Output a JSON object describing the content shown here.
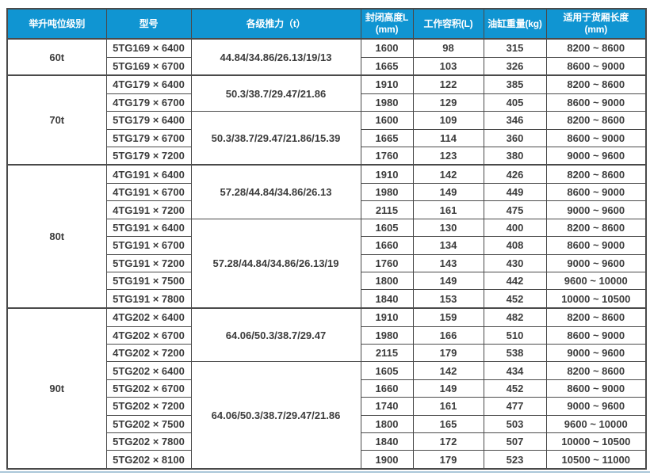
{
  "colors": {
    "header_bg": "#1095d2",
    "header_text": "#ffffff",
    "shaded_row_bg": "#b7dff4",
    "border": "#4a4a4a",
    "text": "#3c3c3c",
    "bottom_divider": "#abc7d9"
  },
  "table": {
    "headers": [
      {
        "label": "举升吨位级别",
        "sub": ""
      },
      {
        "label": "型号",
        "sub": ""
      },
      {
        "label": "各级推力（t）",
        "sub": ""
      },
      {
        "label": "封闭高度L",
        "sub": "(mm)"
      },
      {
        "label": "工作容积(L)",
        "sub": ""
      },
      {
        "label": "油缸重量(kg)",
        "sub": ""
      },
      {
        "label": "适用于货厢长度",
        "sub": "(mm)"
      }
    ],
    "groups": [
      {
        "tonnage": "60t",
        "subgroups": [
          {
            "thrust": "44.84/34.86/26.13/19/13",
            "thrust_shaded": false,
            "rows": [
              {
                "model": "5TG169 × 6400",
                "closed_height": "1600",
                "working_volume": "98",
                "cylinder_weight": "315",
                "cargo_length": "8200 ~ 8600",
                "shaded": false
              },
              {
                "model": "5TG169 × 6700",
                "closed_height": "1665",
                "working_volume": "103",
                "cylinder_weight": "326",
                "cargo_length": "8600 ~ 9000",
                "shaded": true
              }
            ]
          }
        ]
      },
      {
        "tonnage": "70t",
        "subgroups": [
          {
            "thrust": "50.3/38.7/29.47/21.86",
            "thrust_shaded": false,
            "rows": [
              {
                "model": "4TG179 × 6400",
                "closed_height": "1910",
                "working_volume": "122",
                "cylinder_weight": "385",
                "cargo_length": "8200 ~ 8600",
                "shaded": false
              },
              {
                "model": "4TG179 × 6700",
                "closed_height": "1980",
                "working_volume": "129",
                "cylinder_weight": "405",
                "cargo_length": "8600 ~ 9000",
                "shaded": true
              }
            ]
          },
          {
            "thrust": "50.3/38.7/29.47/21.86/15.39",
            "thrust_shaded": false,
            "rows": [
              {
                "model": "5TG179 × 6400",
                "closed_height": "1600",
                "working_volume": "109",
                "cylinder_weight": "346",
                "cargo_length": "8200 ~ 8600",
                "shaded": false
              },
              {
                "model": "5TG179 × 6700",
                "closed_height": "1665",
                "working_volume": "114",
                "cylinder_weight": "360",
                "cargo_length": "8600 ~ 9000",
                "shaded": true
              },
              {
                "model": "5TG179 × 7200",
                "closed_height": "1760",
                "working_volume": "123",
                "cylinder_weight": "380",
                "cargo_length": "9000 ~ 9600",
                "shaded": false
              }
            ]
          }
        ]
      },
      {
        "tonnage": "80t",
        "subgroups": [
          {
            "thrust": "57.28/44.84/34.86/26.13",
            "thrust_shaded": true,
            "rows": [
              {
                "model": "4TG191 × 6400",
                "closed_height": "1910",
                "working_volume": "142",
                "cylinder_weight": "426",
                "cargo_length": "8200 ~ 8600",
                "shaded": true
              },
              {
                "model": "4TG191 × 6700",
                "closed_height": "1980",
                "working_volume": "149",
                "cylinder_weight": "449",
                "cargo_length": "8600 ~ 9000",
                "shaded": false
              },
              {
                "model": "4TG191 × 7200",
                "closed_height": "2115",
                "working_volume": "161",
                "cylinder_weight": "475",
                "cargo_length": "9000 ~ 9600",
                "shaded": true
              }
            ]
          },
          {
            "thrust": "57.28/44.84/34.86/26.13/19",
            "thrust_shaded": false,
            "rows": [
              {
                "model": "5TG191 × 6400",
                "closed_height": "1605",
                "working_volume": "130",
                "cylinder_weight": "400",
                "cargo_length": "8200 ~ 8600",
                "shaded": false
              },
              {
                "model": "5TG191 × 6700",
                "closed_height": "1660",
                "working_volume": "134",
                "cylinder_weight": "408",
                "cargo_length": "8600 ~ 9000",
                "shaded": true
              },
              {
                "model": "5TG191 × 7200",
                "closed_height": "1760",
                "working_volume": "143",
                "cylinder_weight": "430",
                "cargo_length": "9000 ~ 9600",
                "shaded": false
              },
              {
                "model": "5TG191 × 7500",
                "closed_height": "1800",
                "working_volume": "149",
                "cylinder_weight": "442",
                "cargo_length": "9600 ~ 10000",
                "shaded": true
              },
              {
                "model": "5TG191 × 7800",
                "closed_height": "1840",
                "working_volume": "153",
                "cylinder_weight": "452",
                "cargo_length": "10000 ~ 10500",
                "shaded": false
              }
            ]
          }
        ]
      },
      {
        "tonnage": "90t",
        "subgroups": [
          {
            "thrust": "64.06/50.3/38.7/29.47",
            "thrust_shaded": true,
            "rows": [
              {
                "model": "4TG202 × 6400",
                "closed_height": "1910",
                "working_volume": "159",
                "cylinder_weight": "482",
                "cargo_length": "8200 ~ 8600",
                "shaded": true
              },
              {
                "model": "4TG202 × 6700",
                "closed_height": "1980",
                "working_volume": "166",
                "cylinder_weight": "510",
                "cargo_length": "8600 ~ 9000",
                "shaded": false
              },
              {
                "model": "4TG202 × 7200",
                "closed_height": "2115",
                "working_volume": "179",
                "cylinder_weight": "538",
                "cargo_length": "9000 ~ 9600",
                "shaded": true
              }
            ]
          },
          {
            "thrust": "64.06/50.3/38.7/29.47/21.86",
            "thrust_shaded": false,
            "rows": [
              {
                "model": "5TG202 × 6400",
                "closed_height": "1605",
                "working_volume": "142",
                "cylinder_weight": "434",
                "cargo_length": "8200 ~ 8600",
                "shaded": false
              },
              {
                "model": "5TG202 × 6700",
                "closed_height": "1660",
                "working_volume": "149",
                "cylinder_weight": "452",
                "cargo_length": "8600 ~ 9000",
                "shaded": true
              },
              {
                "model": "5TG202 × 7200",
                "closed_height": "1740",
                "working_volume": "161",
                "cylinder_weight": "477",
                "cargo_length": "9000 ~ 9600",
                "shaded": false
              },
              {
                "model": "5TG202 × 7500",
                "closed_height": "1800",
                "working_volume": "165",
                "cylinder_weight": "503",
                "cargo_length": "9600 ~ 10000",
                "shaded": true
              },
              {
                "model": "5TG202 × 7800",
                "closed_height": "1840",
                "working_volume": "172",
                "cylinder_weight": "507",
                "cargo_length": "10000 ~ 10500",
                "shaded": false
              },
              {
                "model": "5TG202 × 8100",
                "closed_height": "1900",
                "working_volume": "179",
                "cylinder_weight": "523",
                "cargo_length": "10500 ~ 11000",
                "shaded": false
              }
            ]
          }
        ]
      }
    ]
  }
}
